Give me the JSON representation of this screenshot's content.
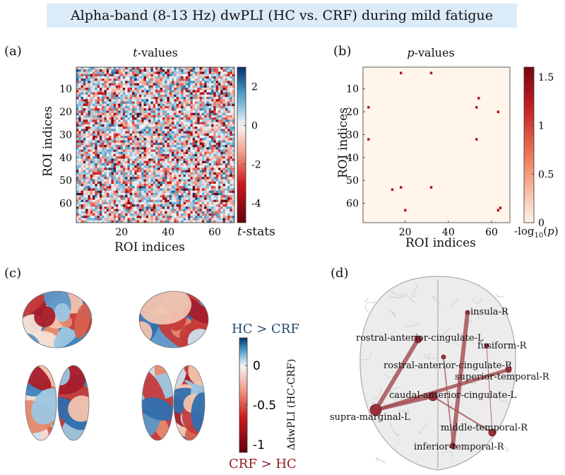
{
  "title": "Alpha-band (8-13 Hz) dwPLI (HC vs. CRF) during mild fatigue",
  "panels": {
    "a": {
      "label": "(a)",
      "subtitle_italic": "t",
      "subtitle_rest": "-values",
      "xlabel": "ROI indices",
      "ylabel": "ROI indices",
      "cbar_label_italic": "t",
      "cbar_label_rest": "-stats"
    },
    "b": {
      "label": "(b)",
      "subtitle_italic": "p",
      "subtitle_rest": "-values",
      "xlabel": "ROI indices",
      "ylabel": "ROI indices",
      "cbar_label": "-log10(p)"
    },
    "c": {
      "label": "(c)",
      "top_label": "HC > CRF",
      "bottom_label": "CRF > HC",
      "cbar_label": "ΔdwPLI (HC-CRF)"
    },
    "d": {
      "label": "(d)"
    }
  },
  "colors": {
    "title_bg": "#dcebf8",
    "hc_label": "#24496e",
    "crf_label": "#8e1b20",
    "edge": "#a24a4f",
    "node": "#9b2f3a"
  },
  "chart_data": [
    {
      "type": "heatmap",
      "title": "t-values",
      "xlabel": "ROI indices",
      "ylabel": "ROI indices",
      "size": 68,
      "x_ticks": [
        20,
        40,
        60
      ],
      "y_ticks": [
        10,
        20,
        30,
        40,
        50,
        60
      ],
      "colorbar": {
        "ticks": [
          2,
          0,
          -2,
          -4
        ],
        "range": [
          -5,
          3
        ],
        "label": "t-stats"
      },
      "colormap": "red-white-blue (diverging)"
    },
    {
      "type": "heatmap",
      "title": "p-values",
      "xlabel": "ROI indices",
      "ylabel": "ROI indices",
      "size": 68,
      "x_ticks": [
        20,
        40,
        60
      ],
      "y_ticks": [
        10,
        20,
        30,
        40,
        50,
        60
      ],
      "colorbar": {
        "ticks": [
          1.5,
          1,
          0.5,
          0
        ],
        "range": [
          0,
          1.6
        ],
        "label": "-log10(p)"
      },
      "significant_cells": [
        {
          "x": 18,
          "y": 3
        },
        {
          "x": 32,
          "y": 3
        },
        {
          "x": 3,
          "y": 18
        },
        {
          "x": 3,
          "y": 32
        },
        {
          "x": 54,
          "y": 14
        },
        {
          "x": 53,
          "y": 18
        },
        {
          "x": 63,
          "y": 20
        },
        {
          "x": 53,
          "y": 32
        },
        {
          "x": 14,
          "y": 54
        },
        {
          "x": 18,
          "y": 53
        },
        {
          "x": 32,
          "y": 53
        },
        {
          "x": 20,
          "y": 63
        },
        {
          "x": 63,
          "y": 63
        },
        {
          "x": 64,
          "y": 62
        }
      ]
    },
    {
      "type": "colorbar",
      "label": "ΔdwPLI (HC-CRF)",
      "ticks": [
        0,
        -0.5,
        -1
      ],
      "range": [
        -1.1,
        0.35
      ]
    },
    {
      "type": "network",
      "nodes": [
        "insula-R",
        "rostral-anterior-cingulate-L",
        "fusiform-R",
        "rostral-anterior-cingulate-R",
        "superior-temporal-R",
        "caudal-anterior-cingulate-L",
        "supra-marginal-L",
        "middle-temporal-R",
        "inferior-temporal-R"
      ],
      "edges": [
        {
          "source": "insula-R",
          "target": "inferior-temporal-R"
        },
        {
          "source": "rostral-anterior-cingulate-L",
          "target": "supra-marginal-L"
        },
        {
          "source": "supra-marginal-L",
          "target": "superior-temporal-R"
        },
        {
          "source": "caudal-anterior-cingulate-L",
          "target": "middle-temporal-R"
        },
        {
          "source": "supra-marginal-L",
          "target": "caudal-anterior-cingulate-L"
        },
        {
          "source": "fusiform-R",
          "target": "middle-temporal-R"
        },
        {
          "source": "rostral-anterior-cingulate-R",
          "target": "inferior-temporal-R"
        }
      ]
    }
  ]
}
